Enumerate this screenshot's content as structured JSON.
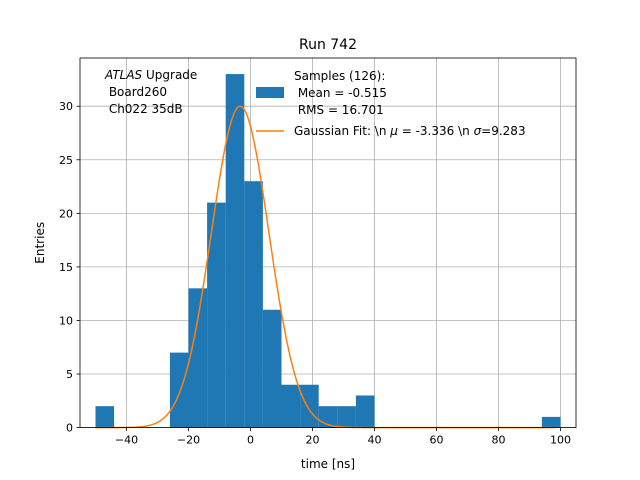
{
  "chart_data": {
    "type": "bar",
    "title": "Run 742",
    "xlabel": "time [ns]",
    "ylabel": "Entries",
    "xlim": [
      -55,
      105
    ],
    "ylim": [
      0,
      34.5
    ],
    "xticks": [
      -40,
      -20,
      0,
      20,
      40,
      60,
      80,
      100
    ],
    "yticks": [
      0,
      5,
      10,
      15,
      20,
      25,
      30
    ],
    "grid": true,
    "bin_width": 6,
    "bins": [
      {
        "x0": -50,
        "x1": -44,
        "value": 2
      },
      {
        "x0": -44,
        "x1": -38,
        "value": 0
      },
      {
        "x0": -38,
        "x1": -32,
        "value": 0
      },
      {
        "x0": -32,
        "x1": -26,
        "value": 0
      },
      {
        "x0": -26,
        "x1": -20,
        "value": 7
      },
      {
        "x0": -20,
        "x1": -14,
        "value": 13
      },
      {
        "x0": -14,
        "x1": -8,
        "value": 21
      },
      {
        "x0": -8,
        "x1": -2,
        "value": 33
      },
      {
        "x0": -2,
        "x1": 4,
        "value": 23
      },
      {
        "x0": 4,
        "x1": 10,
        "value": 11
      },
      {
        "x0": 10,
        "x1": 16,
        "value": 4
      },
      {
        "x0": 16,
        "x1": 22,
        "value": 4
      },
      {
        "x0": 22,
        "x1": 28,
        "value": 2
      },
      {
        "x0": 28,
        "x1": 34,
        "value": 2
      },
      {
        "x0": 34,
        "x1": 40,
        "value": 3
      },
      {
        "x0": 40,
        "x1": 46,
        "value": 0
      },
      {
        "x0": 94,
        "x1": 100,
        "value": 1
      }
    ],
    "fit": {
      "type": "gaussian",
      "amplitude": 30,
      "mean": -3.336,
      "sigma": 9.283,
      "color": "#ff7f0e"
    },
    "bar_color": "#1f77b4",
    "annotation": {
      "line1_italic": "ATLAS",
      "line1_rest": " Upgrade",
      "line2": " Board260",
      "line3": " Ch022 35dB"
    },
    "legend": {
      "position": "upper-center",
      "hist_label_lines": [
        "Samples (126):",
        " Mean = -0.515",
        " RMS = 16.701"
      ],
      "fit_label_pre": "Gaussian Fit: \\n ",
      "fit_label_mu": "μ",
      "fit_label_mid": " = -3.336 \\n ",
      "fit_label_sigma": "σ",
      "fit_label_post": "=9.283"
    }
  }
}
